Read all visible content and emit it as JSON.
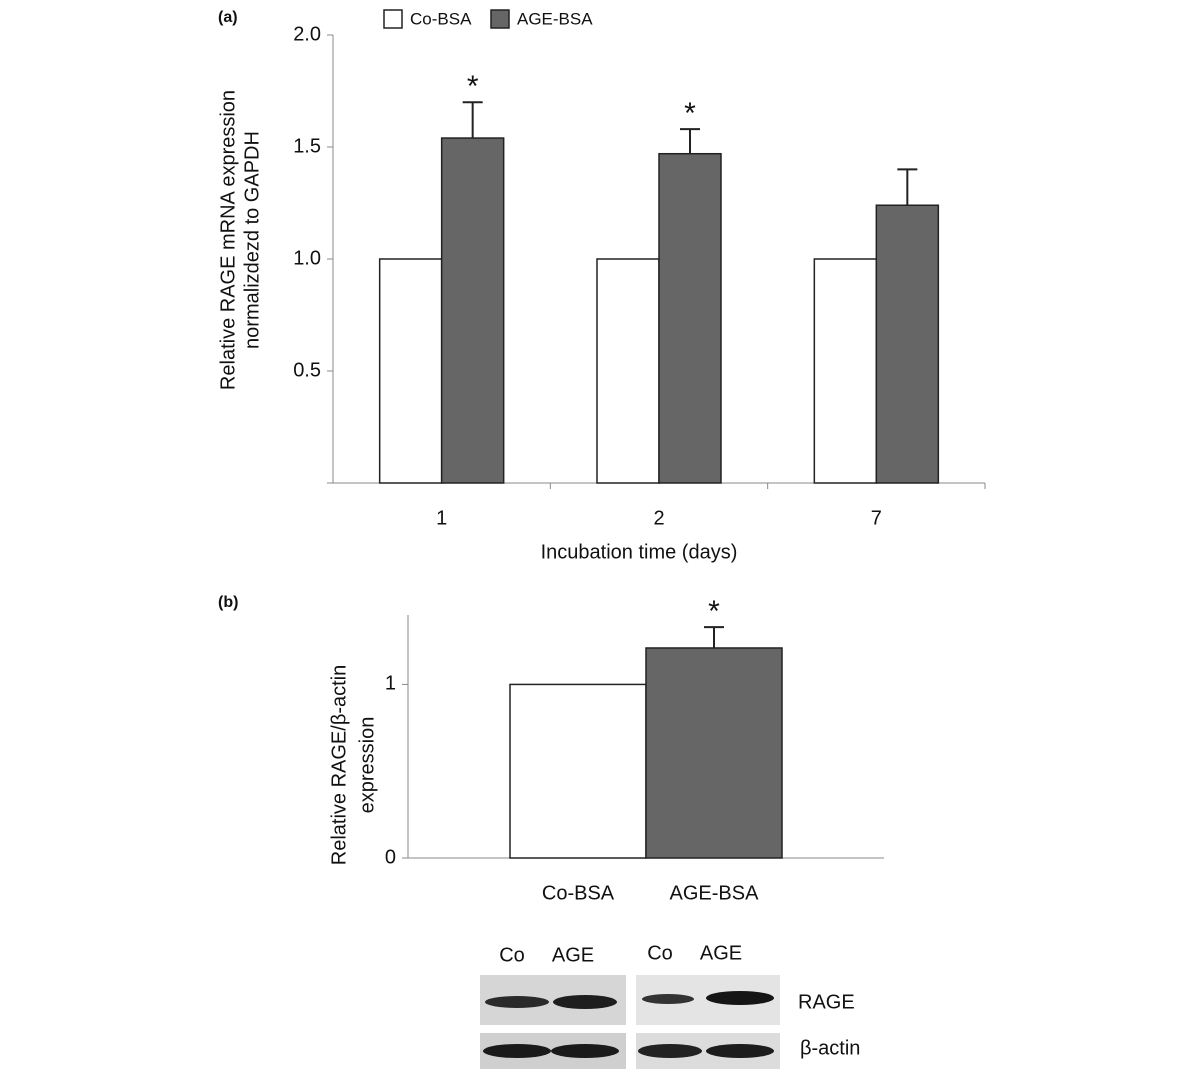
{
  "chart_data": [
    {
      "type": "bar",
      "panel_label": "(a)",
      "y_label": [
        "Relative RAGE mRNA expression",
        "normalizdezd to GAPDH"
      ],
      "x_label": "Incubation time (days)",
      "categories": [
        "1",
        "2",
        "7"
      ],
      "series": [
        {
          "name": "Co-BSA",
          "color": "#ffffff",
          "values": [
            1,
            1,
            1
          ]
        },
        {
          "name": "AGE-BSA",
          "color": "#666666",
          "values": [
            1.54,
            1.47,
            1.24
          ],
          "errors": [
            0.16,
            0.11,
            0.16
          ]
        }
      ],
      "annotations": [
        "*",
        "*",
        null
      ],
      "ylim": [
        0,
        2
      ],
      "yticks": [
        0.5,
        {
          "value": 1,
          "label": "1.0"
        },
        1.5,
        {
          "value": 2,
          "label": "2.0"
        }
      ]
    },
    {
      "type": "bar",
      "panel_label": "(b)",
      "y_label": [
        "Relative RAGE/β-actin",
        "expression"
      ],
      "categories": [
        "Co-BSA",
        "AGE-BSA"
      ],
      "values": [
        1,
        1.21
      ],
      "errors": [
        null,
        0.12
      ],
      "colors": [
        "#ffffff",
        "#666666"
      ],
      "annotations": [
        null,
        "*"
      ],
      "ylim": [
        0,
        1.4
      ],
      "yticks": [
        0,
        1
      ]
    }
  ],
  "blot": {
    "lanes": [
      "Co",
      "AGE",
      "Co",
      "AGE"
    ],
    "rows": [
      "RAGE",
      "β-actin"
    ]
  }
}
